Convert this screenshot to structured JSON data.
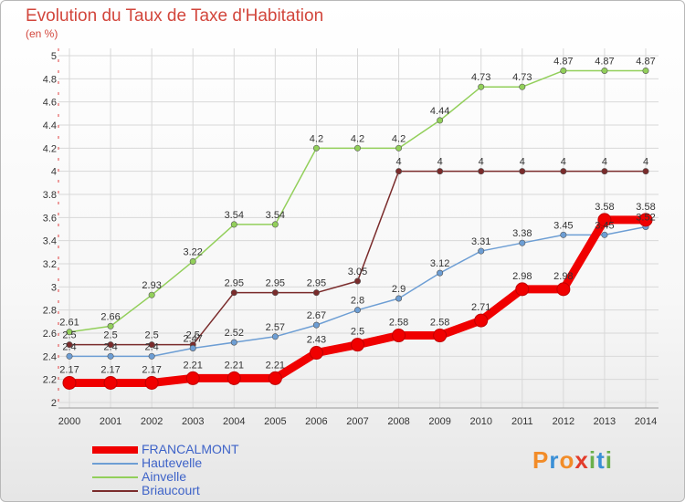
{
  "header": {
    "title": "Evolution du Taux de Taxe d'Habitation",
    "unit": "(en %)"
  },
  "logo": {
    "text": "Proxiti",
    "letter_colors": [
      "#f28c28",
      "#3a8fd6",
      "#f28c28",
      "#e23b2a",
      "#6ab04c",
      "#3a8fd6",
      "#6ab04c"
    ]
  },
  "chart_data": {
    "type": "line",
    "x": [
      "2000",
      "2001",
      "2002",
      "2003",
      "2004",
      "2005",
      "2006",
      "2007",
      "2008",
      "2009",
      "2010",
      "2011",
      "2012",
      "2013",
      "2014"
    ],
    "ylim": [
      2,
      5
    ],
    "yticks": [
      "2",
      "2.2",
      "2.4",
      "2.6",
      "2.8",
      "3",
      "3.2",
      "3.4",
      "3.6",
      "3.8",
      "4",
      "4.2",
      "4.4",
      "4.6",
      "4.8",
      "5"
    ],
    "grid": true,
    "legend_position": "bottom-left",
    "series": [
      {
        "name": "Ainvelle",
        "color": "#92cf5a",
        "values": [
          2.61,
          2.66,
          2.93,
          3.22,
          3.54,
          3.54,
          4.2,
          4.2,
          4.2,
          4.44,
          4.73,
          4.73,
          4.87,
          4.87,
          4.87
        ],
        "labels": [
          "2.61",
          "2.66",
          "2.93",
          "3.22",
          "3.54",
          "3.54",
          "4.2",
          "4.2",
          "4.2",
          "4.44",
          "4.73",
          "4.73",
          "4.87",
          "4.87",
          "4.87"
        ]
      },
      {
        "name": "Briaucourt",
        "color": "#7a2b2b",
        "values": [
          2.5,
          2.5,
          2.5,
          2.5,
          2.95,
          2.95,
          2.95,
          3.05,
          4,
          4,
          4,
          4,
          4,
          4,
          4
        ],
        "labels": [
          "2.5",
          "2.5",
          "2.5",
          "2.5",
          "2.95",
          "2.95",
          "2.95",
          "3.05",
          "4",
          "4",
          "4",
          "4",
          "4",
          "4",
          "4"
        ]
      },
      {
        "name": "Hautevelle",
        "color": "#6d9ed4",
        "values": [
          2.4,
          2.4,
          2.4,
          2.47,
          2.52,
          2.57,
          2.67,
          2.8,
          2.9,
          3.12,
          3.31,
          3.38,
          3.45,
          3.45,
          3.52
        ],
        "labels": [
          "2.4",
          "2.4",
          "2.4",
          "2.47",
          "2.52",
          "2.57",
          "2.67",
          "2.8",
          "2.9",
          "3.12",
          "3.31",
          "3.38",
          "3.45",
          "3.45",
          "3.52"
        ]
      },
      {
        "name": "FRANCALMONT",
        "color": "#f00000",
        "values": [
          2.17,
          2.17,
          2.17,
          2.21,
          2.21,
          2.21,
          2.43,
          2.5,
          2.58,
          2.58,
          2.71,
          2.98,
          2.98,
          3.58,
          3.58
        ],
        "labels": [
          "2.17",
          "2.17",
          "2.17",
          "2.21",
          "2.21",
          "2.21",
          "2.43",
          "2.5",
          "2.58",
          "2.58",
          "2.71",
          "2.98",
          "2.98",
          "3.58",
          "3.58"
        ]
      }
    ],
    "legend": [
      {
        "name": "FRANCALMONT",
        "color": "#f00000",
        "thick": true
      },
      {
        "name": "Hautevelle",
        "color": "#6d9ed4",
        "thick": false
      },
      {
        "name": "Ainvelle",
        "color": "#92cf5a",
        "thick": false
      },
      {
        "name": "Briaucourt",
        "color": "#7a2b2b",
        "thick": false
      }
    ]
  }
}
